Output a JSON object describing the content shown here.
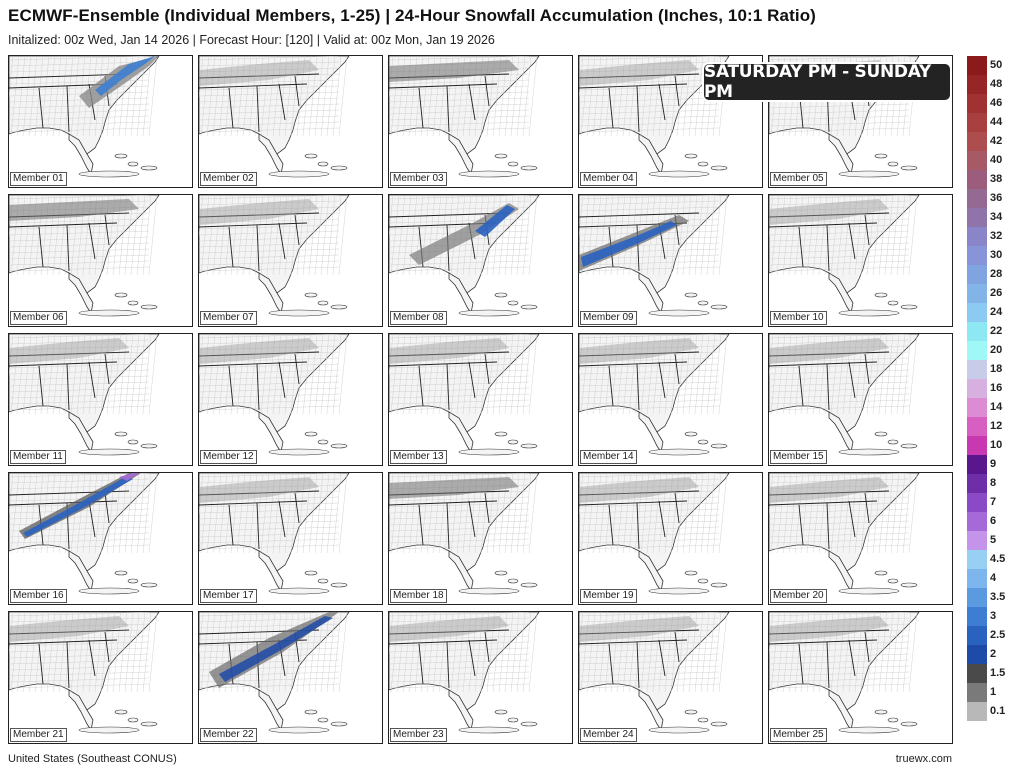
{
  "header": {
    "title": "ECMWF-Ensemble (Individual Members, 1-25) | 24-Hour Snowfall Accumulation (Inches, 10:1 Ratio)",
    "subtitle": "Initalized: 00z Wed, Jan 14 2026  |  Forecast Hour: [120]  |  Valid at: 00z Mon, Jan 19 2026"
  },
  "banner": {
    "text": "SATURDAY PM - SUNDAY PM"
  },
  "panels": [
    {
      "label": "Member 01",
      "snow": "northeast-band"
    },
    {
      "label": "Member 02",
      "snow": "light"
    },
    {
      "label": "Member 03",
      "snow": "light-north"
    },
    {
      "label": "Member 04",
      "snow": "light"
    },
    {
      "label": "Member 05",
      "snow": "light"
    },
    {
      "label": "Member 06",
      "snow": "light-north"
    },
    {
      "label": "Member 07",
      "snow": "light"
    },
    {
      "label": "Member 08",
      "snow": "coastal-band"
    },
    {
      "label": "Member 09",
      "snow": "gulf-band"
    },
    {
      "label": "Member 10",
      "snow": "light"
    },
    {
      "label": "Member 11",
      "snow": "light"
    },
    {
      "label": "Member 12",
      "snow": "light"
    },
    {
      "label": "Member 13",
      "snow": "light"
    },
    {
      "label": "Member 14",
      "snow": "light"
    },
    {
      "label": "Member 15",
      "snow": "light"
    },
    {
      "label": "Member 16",
      "snow": "heavy-band"
    },
    {
      "label": "Member 17",
      "snow": "light"
    },
    {
      "label": "Member 18",
      "snow": "light-north"
    },
    {
      "label": "Member 19",
      "snow": "light"
    },
    {
      "label": "Member 20",
      "snow": "light"
    },
    {
      "label": "Member 21",
      "snow": "light"
    },
    {
      "label": "Member 22",
      "snow": "wide-band"
    },
    {
      "label": "Member 23",
      "snow": "light"
    },
    {
      "label": "Member 24",
      "snow": "light"
    },
    {
      "label": "Member 25",
      "snow": "light"
    }
  ],
  "legend": [
    {
      "label": "50",
      "color": "#8b1a1a"
    },
    {
      "label": "48",
      "color": "#962626"
    },
    {
      "label": "46",
      "color": "#a03232"
    },
    {
      "label": "44",
      "color": "#a8403f"
    },
    {
      "label": "42",
      "color": "#ad4d4d"
    },
    {
      "label": "40",
      "color": "#a65a66"
    },
    {
      "label": "38",
      "color": "#9c5d7c"
    },
    {
      "label": "36",
      "color": "#946a92"
    },
    {
      "label": "34",
      "color": "#8e74a8"
    },
    {
      "label": "32",
      "color": "#8a84c8"
    },
    {
      "label": "30",
      "color": "#8794d8"
    },
    {
      "label": "28",
      "color": "#7fa4e0"
    },
    {
      "label": "26",
      "color": "#82b4e8"
    },
    {
      "label": "24",
      "color": "#8ccaf2"
    },
    {
      "label": "22",
      "color": "#8ee8f4"
    },
    {
      "label": "20",
      "color": "#9ff8f6"
    },
    {
      "label": "18",
      "color": "#c8cce8"
    },
    {
      "label": "16",
      "color": "#d8b0e0"
    },
    {
      "label": "14",
      "color": "#dc8cd2"
    },
    {
      "label": "12",
      "color": "#d85fc2"
    },
    {
      "label": "10",
      "color": "#c838b0"
    },
    {
      "label": "9",
      "color": "#5a168c"
    },
    {
      "label": "8",
      "color": "#6e2ea8"
    },
    {
      "label": "7",
      "color": "#8a4ac6"
    },
    {
      "label": "6",
      "color": "#a66ad8"
    },
    {
      "label": "5",
      "color": "#c494ea"
    },
    {
      "label": "4.5",
      "color": "#98d0f4"
    },
    {
      "label": "4",
      "color": "#7cb6ec"
    },
    {
      "label": "3.5",
      "color": "#5c9ae0"
    },
    {
      "label": "3",
      "color": "#3e7ed2"
    },
    {
      "label": "2.5",
      "color": "#2a62c0"
    },
    {
      "label": "2",
      "color": "#1e4aa8"
    },
    {
      "label": "1.5",
      "color": "#4a4a4a"
    },
    {
      "label": "1",
      "color": "#7a7a7a"
    },
    {
      "label": "0.1",
      "color": "#b8b8b8"
    },
    {
      "label": "",
      "color": "#ffffff"
    }
  ],
  "footer": {
    "left": "United States (Southeast CONUS)",
    "right": "truewx.com"
  }
}
